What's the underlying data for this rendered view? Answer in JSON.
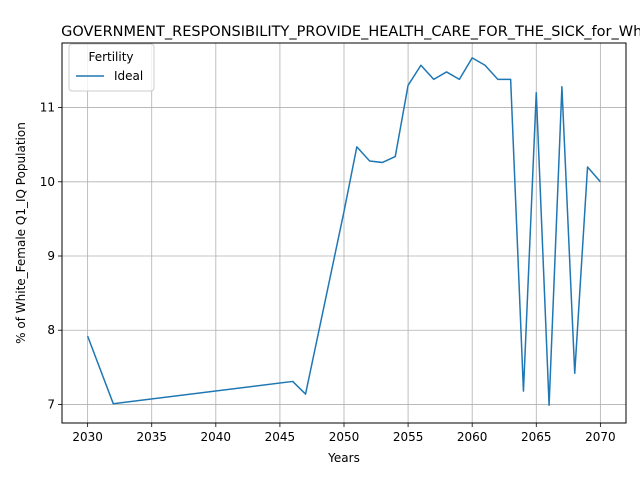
{
  "chart_data": {
    "type": "line",
    "title": "GOVERNMENT_RESPONSIBILITY_PROVIDE_HEALTH_CARE_FOR_THE_SICK_for_White",
    "xlabel": "Years",
    "ylabel": "% of White_Female Q1_IQ Population",
    "xlim": [
      2028,
      2072
    ],
    "ylim": [
      6.75,
      11.87
    ],
    "xticks": [
      2030,
      2035,
      2040,
      2045,
      2050,
      2055,
      2060,
      2065,
      2070
    ],
    "yticks": [
      7,
      8,
      9,
      10,
      11
    ],
    "grid": true,
    "legend": {
      "title": "Fertility",
      "placement": "top-left"
    },
    "series": [
      {
        "name": "Ideal",
        "color": "#1f77b4",
        "x": [
          2030,
          2032,
          2046,
          2047,
          2050,
          2051,
          2052,
          2053,
          2054,
          2055,
          2056,
          2057,
          2058,
          2059,
          2060,
          2061,
          2062,
          2063,
          2064,
          2065,
          2066,
          2067,
          2068,
          2069,
          2070
        ],
        "y": [
          7.92,
          7.01,
          7.31,
          7.14,
          9.6,
          10.47,
          10.28,
          10.26,
          10.34,
          11.3,
          11.57,
          11.38,
          11.48,
          11.38,
          11.67,
          11.57,
          11.38,
          11.38,
          7.18,
          11.2,
          6.99,
          11.28,
          7.42,
          10.2,
          10.0
        ]
      }
    ]
  }
}
